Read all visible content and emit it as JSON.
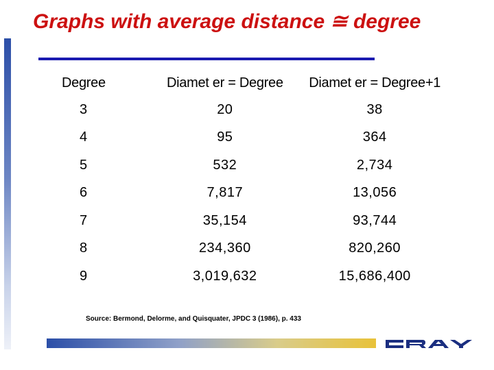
{
  "slide": {
    "title": "Graphs with average distance ≅ degree",
    "table": {
      "headers": [
        "Degree",
        "Diamet er = Degree",
        "Diamet er = Degree+1"
      ],
      "rows": [
        [
          "3",
          "20",
          "38"
        ],
        [
          "4",
          "95",
          "364"
        ],
        [
          "5",
          "532",
          "2,734"
        ],
        [
          "6",
          "7,817",
          "13,056"
        ],
        [
          "7",
          "35,154",
          "93,744"
        ],
        [
          "8",
          "234,360",
          "820,260"
        ],
        [
          "9",
          "3,019,632",
          "15,686,400"
        ]
      ]
    },
    "source": "Source: Bermond, Delorme, and Quisquater, JPDC 3 (1986), p. 433",
    "logo_text": "CRAY",
    "colors": {
      "title": "#cc1111",
      "rule": "#1a1ab0",
      "logo": "#1a2e80"
    }
  }
}
